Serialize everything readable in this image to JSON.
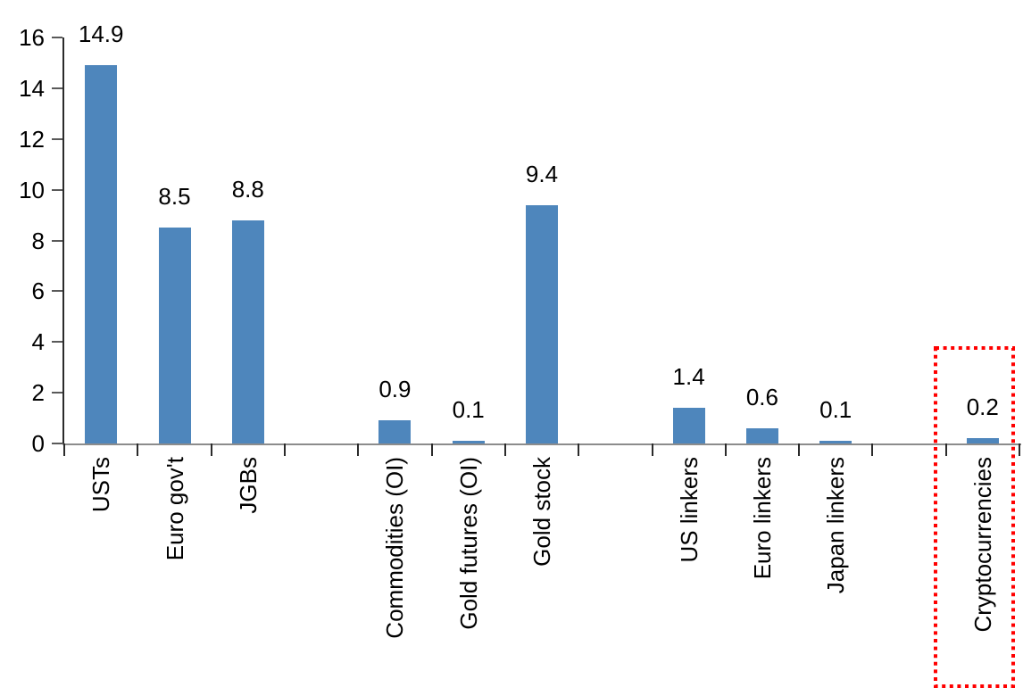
{
  "chart_data": {
    "type": "bar",
    "title": "",
    "xlabel": "",
    "ylabel": "",
    "categories": [
      "USTs",
      "Euro gov't",
      "JGBs",
      "",
      "Commodities (OI)",
      "Gold futures (OI)",
      "Gold stock",
      "",
      "US linkers",
      "Euro linkers",
      "Japan linkers",
      "",
      "Cryptocurrencies"
    ],
    "values": [
      14.9,
      8.5,
      8.8,
      null,
      0.9,
      0.1,
      9.4,
      null,
      1.4,
      0.6,
      0.1,
      null,
      0.2
    ],
    "value_labels": [
      "14.9",
      "8.5",
      "8.8",
      "",
      "0.9",
      "0.1",
      "9.4",
      "",
      "1.4",
      "0.6",
      "0.1",
      "",
      "0.2"
    ],
    "y_ticks": [
      0,
      2,
      4,
      6,
      8,
      10,
      12,
      14,
      16
    ],
    "ylim": [
      0,
      16
    ],
    "grid": false,
    "legend": "none",
    "category_label_rotation": -90,
    "colors": {
      "bar": "#4E86BC",
      "y_axis_line": "#2b2b2b",
      "x_axis_line": "#8c8c8c",
      "x_tick": "#2b2b2b",
      "y_tick": "#595959",
      "text": "#000000",
      "highlight": "#FF0000"
    },
    "highlight": {
      "category": "Cryptocurrencies",
      "style": "red-dotted-rectangle"
    }
  }
}
